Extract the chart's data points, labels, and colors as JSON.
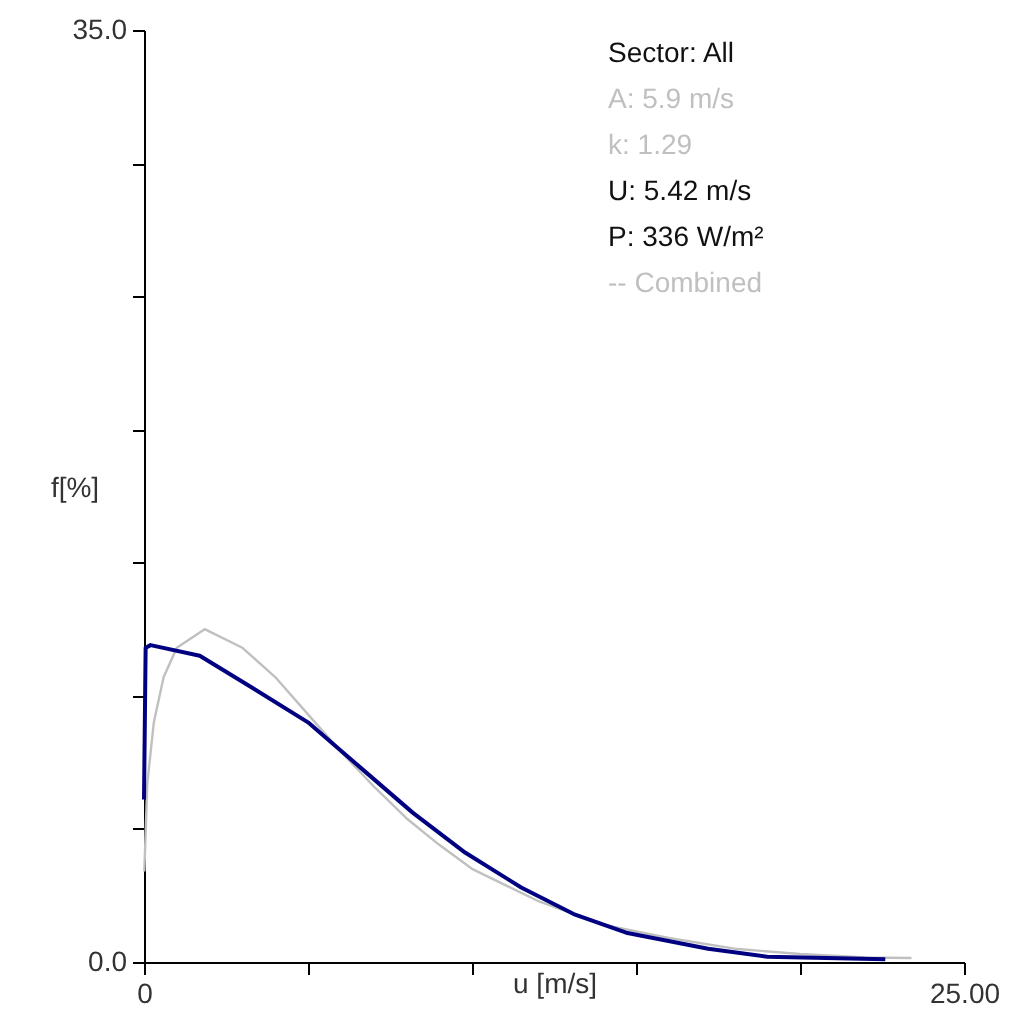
{
  "chart_data": {
    "type": "line",
    "xlabel": "u [m/s]",
    "ylabel": "f[%]",
    "annotations": [
      "Sector: All",
      "A: 5.9 m/s",
      "k: 1.29",
      "U: 5.42 m/s",
      "P: 336 W/m²",
      "-- Combined"
    ],
    "xlim": [
      0,
      25
    ],
    "ylim": [
      0,
      35
    ],
    "xticks": [
      {
        "value": 0,
        "label": "0"
      },
      {
        "value": 5,
        "label": null
      },
      {
        "value": 10,
        "label": null
      },
      {
        "value": 15,
        "label": null
      },
      {
        "value": 20,
        "label": null
      },
      {
        "value": 25,
        "label": "25.00"
      }
    ],
    "yticks": [
      {
        "value": 0,
        "label": "0.0"
      },
      {
        "value": 5,
        "label": null
      },
      {
        "value": 10,
        "label": null
      },
      {
        "value": 15,
        "label": null
      },
      {
        "value": 20,
        "label": null
      },
      {
        "value": 25,
        "label": null
      },
      {
        "value": 30,
        "label": null
      },
      {
        "value": 35,
        "label": "35.0"
      }
    ],
    "grid": false,
    "series": [
      {
        "color": "#c0c0c0",
        "x": [
          0.01,
          0.1,
          0.3,
          0.6,
          1,
          1.85,
          3,
          4,
          5,
          6,
          7,
          8,
          9,
          10,
          12,
          14,
          16,
          18,
          20,
          22,
          23.4
        ],
        "values": [
          3.4,
          6.7,
          9.0,
          10.7,
          11.8,
          12.5,
          11.8,
          10.7,
          9.3,
          7.9,
          6.6,
          5.4,
          4.4,
          3.5,
          2.3,
          1.4,
          0.9,
          0.5,
          0.3,
          0.17,
          0.15
        ]
      },
      {
        "color": "#000080",
        "x": [
          0,
          0.05,
          0.2,
          1.7,
          3.3,
          5.0,
          6.6,
          8.2,
          9.8,
          11.5,
          13.1,
          14.7,
          17.2,
          19.0,
          22.6
        ],
        "values": [
          6.1,
          11.8,
          11.9,
          11.5,
          10.3,
          9.0,
          7.3,
          5.6,
          4.1,
          2.8,
          1.8,
          1.1,
          0.5,
          0.2,
          0.1
        ]
      }
    ]
  }
}
